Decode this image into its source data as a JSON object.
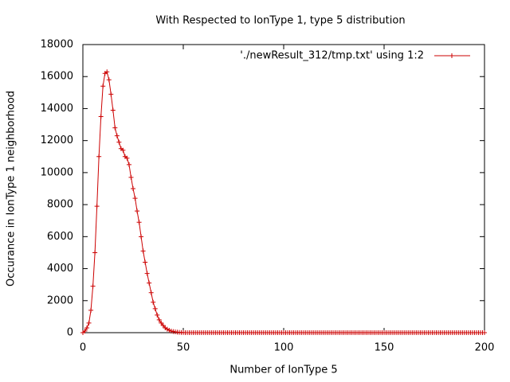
{
  "chart_data": {
    "type": "line",
    "title": "With Respected to IonType 1, type 5 distribution",
    "x_label": "Number of IonType 5",
    "y_label": "Occurance in IonType 1 neighborhood",
    "xlim": [
      0,
      200
    ],
    "xticks": [
      0,
      50,
      100,
      150,
      200
    ],
    "ylim": [
      0,
      18000
    ],
    "yticks": [
      0,
      2000,
      4000,
      6000,
      8000,
      10000,
      12000,
      14000,
      16000,
      18000
    ],
    "grid": false,
    "legend": "top-right",
    "x": [
      0,
      1,
      2,
      3,
      4,
      5,
      6,
      7,
      8,
      9,
      10,
      11,
      12,
      13,
      14,
      15,
      16,
      17,
      18,
      19,
      20,
      21,
      22,
      23,
      24,
      25,
      26,
      27,
      28,
      29,
      30,
      31,
      32,
      33,
      34,
      35,
      36,
      37,
      38,
      39,
      40,
      41,
      42,
      43,
      44,
      45,
      46,
      47,
      48,
      49,
      50,
      51,
      52,
      53,
      54,
      55,
      56,
      57,
      58,
      59,
      60,
      61,
      62,
      63,
      64,
      65,
      66,
      67,
      68,
      69,
      70,
      71,
      72,
      73,
      74,
      75,
      76,
      77,
      78,
      79,
      80,
      81,
      82,
      83,
      84,
      85,
      86,
      87,
      88,
      89,
      90,
      91,
      92,
      93,
      94,
      95,
      96,
      97,
      98,
      99,
      100,
      101,
      102,
      103,
      104,
      105,
      106,
      107,
      108,
      109,
      110,
      111,
      112,
      113,
      114,
      115,
      116,
      117,
      118,
      119,
      120,
      121,
      122,
      123,
      124,
      125,
      126,
      127,
      128,
      129,
      130,
      131,
      132,
      133,
      134,
      135,
      136,
      137,
      138,
      139,
      140,
      141,
      142,
      143,
      144,
      145,
      146,
      147,
      148,
      149,
      150,
      151,
      152,
      153,
      154,
      155,
      156,
      157,
      158,
      159,
      160,
      161,
      162,
      163,
      164,
      165,
      166,
      167,
      168,
      169,
      170,
      171,
      172,
      173,
      174,
      175,
      176,
      177,
      178,
      179,
      180,
      181,
      182,
      183,
      184,
      185,
      186,
      187,
      188,
      189,
      190,
      191,
      192,
      193,
      194,
      195,
      196,
      197,
      198,
      199,
      200
    ],
    "series": [
      {
        "name": "'./newResult_312/tmp.txt' using 1:2",
        "color": "#cc0000",
        "values": [
          0,
          100,
          300,
          600,
          1400,
          2900,
          5000,
          7900,
          11000,
          13500,
          15400,
          16200,
          16300,
          15800,
          14900,
          13900,
          12800,
          12300,
          11900,
          11500,
          11400,
          11000,
          10900,
          10500,
          9700,
          9000,
          8400,
          7600,
          6900,
          6000,
          5100,
          4400,
          3700,
          3100,
          2500,
          1900,
          1500,
          1100,
          800,
          600,
          450,
          300,
          220,
          150,
          100,
          70,
          50,
          30,
          20,
          10,
          5,
          0,
          0,
          0,
          0,
          0,
          0,
          0,
          0,
          0,
          0,
          0,
          0,
          0,
          0,
          0,
          0,
          0,
          0,
          0,
          0,
          0,
          0,
          0,
          0,
          0,
          0,
          0,
          0,
          0,
          0,
          0,
          0,
          0,
          0,
          0,
          0,
          0,
          0,
          0,
          0,
          0,
          0,
          0,
          0,
          0,
          0,
          0,
          0,
          0,
          0,
          0,
          0,
          0,
          0,
          0,
          0,
          0,
          0,
          0,
          0,
          0,
          0,
          0,
          0,
          0,
          0,
          0,
          0,
          0,
          0,
          0,
          0,
          0,
          0,
          0,
          0,
          0,
          0,
          0,
          0,
          0,
          0,
          0,
          0,
          0,
          0,
          0,
          0,
          0,
          0,
          0,
          0,
          0,
          0,
          0,
          0,
          0,
          0,
          0,
          0,
          0,
          0,
          0,
          0,
          0,
          0,
          0,
          0,
          0,
          0,
          0,
          0,
          0,
          0,
          0,
          0,
          0,
          0,
          0,
          0,
          0,
          0,
          0,
          0,
          0,
          0,
          0,
          0,
          0,
          0,
          0,
          0,
          0,
          0,
          0,
          0,
          0,
          0,
          0,
          0,
          0,
          0,
          0,
          0,
          0,
          0,
          0,
          0,
          0,
          0
        ]
      }
    ]
  }
}
